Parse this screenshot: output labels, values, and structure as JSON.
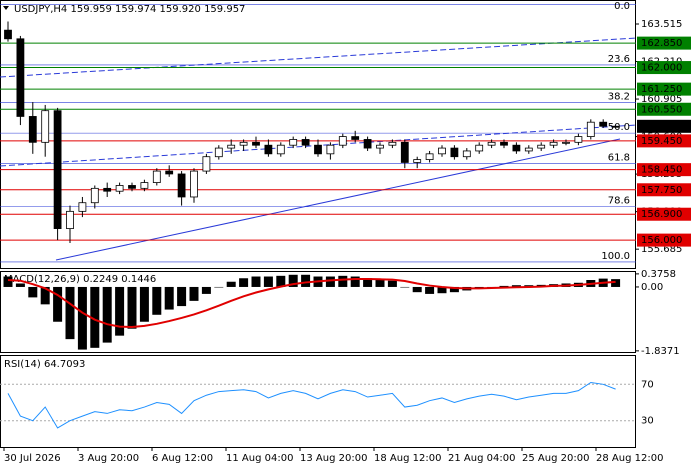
{
  "chart_data": {
    "type": "candlestick",
    "title": "USDJPY,H4  159.959 159.974 159.920 159.957",
    "ylim": [
      155.03,
      164.21
    ],
    "yticks": [
      163.515,
      {
        "value": 162.21,
        "label": "162.210"
      },
      160.905,
      {
        "value": 159.6,
        "label": "159.600"
      },
      158.295,
      {
        "value": 156.99,
        "label": "156.990"
      },
      155.685
    ],
    "open": [
      163.3,
      163.0,
      160.3,
      159.4,
      160.5,
      156.4,
      157.0,
      157.3,
      157.8,
      157.7,
      157.9,
      157.8,
      158.0,
      158.4,
      158.3,
      157.5,
      158.4,
      158.9,
      159.2,
      159.3,
      159.4,
      159.3,
      159.0,
      159.3,
      159.5,
      159.3,
      159.0,
      159.3,
      159.6,
      159.5,
      159.2,
      159.3,
      159.4,
      158.7,
      158.8,
      159.0,
      159.2,
      158.9,
      159.1,
      159.3,
      159.4,
      159.3,
      159.1,
      159.2,
      159.3,
      159.4,
      159.4,
      159.6,
      160.1,
      159.959
    ],
    "high": [
      163.6,
      163.1,
      160.8,
      160.7,
      160.6,
      157.2,
      157.5,
      157.9,
      158.0,
      158.0,
      158.0,
      158.1,
      158.5,
      158.6,
      158.4,
      158.5,
      159.0,
      159.3,
      159.5,
      159.5,
      159.6,
      159.5,
      159.4,
      159.6,
      159.6,
      159.5,
      159.4,
      159.7,
      159.8,
      159.6,
      159.4,
      159.5,
      159.5,
      158.9,
      159.1,
      159.3,
      159.3,
      159.2,
      159.4,
      159.5,
      159.5,
      159.4,
      159.3,
      159.4,
      159.5,
      159.5,
      159.7,
      160.2,
      160.2,
      159.974
    ],
    "low": [
      162.9,
      160.0,
      159.0,
      158.9,
      156.0,
      155.9,
      156.8,
      157.1,
      157.5,
      157.6,
      157.7,
      157.7,
      157.9,
      158.2,
      157.2,
      157.3,
      158.3,
      158.8,
      159.0,
      159.1,
      159.2,
      158.9,
      158.9,
      159.2,
      159.2,
      158.9,
      158.8,
      159.2,
      159.4,
      159.1,
      159.0,
      159.2,
      158.5,
      158.5,
      158.7,
      158.9,
      158.8,
      158.8,
      159.0,
      159.2,
      159.2,
      159.0,
      159.0,
      159.1,
      159.2,
      159.3,
      159.3,
      159.5,
      159.9,
      159.92
    ],
    "close": [
      163.0,
      160.3,
      159.4,
      160.5,
      156.4,
      157.0,
      157.3,
      157.8,
      157.7,
      157.9,
      157.8,
      158.0,
      158.4,
      158.3,
      157.5,
      158.4,
      158.9,
      159.2,
      159.3,
      159.4,
      159.3,
      159.0,
      159.3,
      159.5,
      159.3,
      159.0,
      159.3,
      159.6,
      159.5,
      159.2,
      159.3,
      159.4,
      158.7,
      158.8,
      159.0,
      159.2,
      158.9,
      159.1,
      159.3,
      159.4,
      159.3,
      159.1,
      159.2,
      159.3,
      159.4,
      159.4,
      159.6,
      160.1,
      159.959,
      159.957
    ],
    "levels": [
      {
        "value": 162.85,
        "label": "162.850",
        "color": "#008000"
      },
      {
        "value": 162.0,
        "label": "162.000",
        "color": "#008000"
      },
      {
        "value": 161.25,
        "label": "161.250",
        "color": "#008000"
      },
      {
        "value": 160.55,
        "label": "160.550",
        "color": "#008000"
      },
      {
        "value": 159.45,
        "label": "159.450",
        "color": "#e00000"
      },
      {
        "value": 158.45,
        "label": "158.450",
        "color": "#e00000"
      },
      {
        "value": 157.75,
        "label": "157.750",
        "color": "#e00000"
      },
      {
        "value": 156.9,
        "label": "156.900",
        "color": "#e00000"
      },
      {
        "value": 156.0,
        "label": "156.000",
        "color": "#e00000"
      }
    ],
    "fib_levels": [
      {
        "label": "0.0",
        "price": 164.2
      },
      {
        "label": "23.6",
        "price": 162.09
      },
      {
        "label": "38.2",
        "price": 160.78
      },
      {
        "label": "50.0",
        "price": 159.72
      },
      {
        "label": "61.8",
        "price": 158.66
      },
      {
        "label": "78.6",
        "price": 157.16
      },
      {
        "label": "100.0",
        "price": 155.24
      }
    ],
    "x_labels": [
      "30 Jul 2026",
      "3 Aug 20:00",
      "6 Aug 12:00",
      "11 Aug 04:00",
      "13 Aug 20:00",
      "18 Aug 12:00",
      "21 Aug 04:00",
      "25 Aug 20:00",
      "28 Aug 12:00"
    ],
    "macd": {
      "title": "MACD(12,26,9) 0.2249 0.1446",
      "ylim": [
        -1.87,
        0.43
      ],
      "yticks": [
        0.3758,
        {
          "value": 0,
          "label": "0.00"
        },
        -1.8371
      ],
      "histogram": [
        0.3,
        0.1,
        -0.3,
        -0.5,
        -1.0,
        -1.5,
        -1.8,
        -1.75,
        -1.6,
        -1.4,
        -1.2,
        -1.0,
        -0.8,
        -0.65,
        -0.55,
        -0.4,
        -0.2,
        0.0,
        0.15,
        0.25,
        0.3,
        0.3,
        0.32,
        0.35,
        0.35,
        0.3,
        0.3,
        0.32,
        0.3,
        0.25,
        0.2,
        0.18,
        0.0,
        -0.15,
        -0.2,
        -0.18,
        -0.15,
        -0.1,
        -0.05,
        0.0,
        0.03,
        0.05,
        0.05,
        0.06,
        0.08,
        0.1,
        0.12,
        0.2,
        0.24,
        0.2249
      ],
      "signal": [
        0.2,
        0.18,
        0.08,
        -0.04,
        -0.23,
        -0.48,
        -0.74,
        -0.94,
        -1.07,
        -1.14,
        -1.15,
        -1.12,
        -1.06,
        -0.98,
        -0.89,
        -0.79,
        -0.67,
        -0.54,
        -0.4,
        -0.27,
        -0.16,
        -0.07,
        0.01,
        0.08,
        0.13,
        0.16,
        0.19,
        0.21,
        0.23,
        0.23,
        0.22,
        0.21,
        0.17,
        0.1,
        0.04,
        0.0,
        -0.03,
        -0.04,
        -0.04,
        -0.03,
        -0.02,
        -0.01,
        0.0,
        0.01,
        0.03,
        0.04,
        0.06,
        0.09,
        0.12,
        0.1446
      ],
      "signal_color": "#e00000"
    },
    "rsi": {
      "title": "RSI(14) 64.7093",
      "ylim": [
        0,
        100
      ],
      "yticks": [
        70,
        30
      ],
      "values": [
        60,
        35,
        30,
        45,
        22,
        30,
        35,
        40,
        38,
        42,
        41,
        45,
        50,
        48,
        38,
        52,
        58,
        62,
        63,
        64,
        62,
        55,
        60,
        63,
        60,
        54,
        60,
        64,
        62,
        56,
        58,
        60,
        45,
        47,
        52,
        55,
        50,
        54,
        57,
        59,
        57,
        53,
        56,
        58,
        60,
        60,
        63,
        72,
        70,
        64.7093
      ],
      "color": "#1e90ff"
    }
  }
}
